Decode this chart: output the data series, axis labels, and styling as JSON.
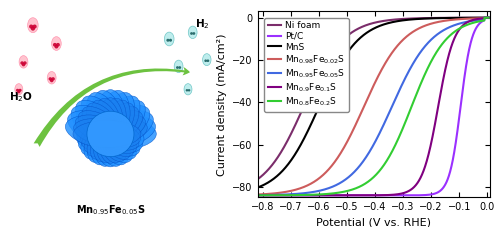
{
  "xlabel": "Potential (V vs. RHE)",
  "ylabel": "Current density (mA/cm²)",
  "xlim": [
    -0.82,
    0.01
  ],
  "ylim": [
    -85,
    3
  ],
  "yticks": [
    0,
    -20,
    -40,
    -60,
    -80
  ],
  "xticks": [
    -0.8,
    -0.7,
    -0.6,
    -0.5,
    -0.4,
    -0.3,
    -0.2,
    -0.1,
    0.0
  ],
  "line_colors": [
    "#7B2D6B",
    "#9B30FF",
    "#000000",
    "#CD5C5C",
    "#4169E1",
    "#800080",
    "#32CD32"
  ],
  "line_widths": [
    1.5,
    1.5,
    1.5,
    1.5,
    1.5,
    1.5,
    1.5
  ],
  "curve_params": [
    {
      "onset": -0.655,
      "steepness": 14,
      "max_current": -84
    },
    {
      "onset": -0.095,
      "steepness": 50,
      "max_current": -84
    },
    {
      "onset": -0.6,
      "steepness": 14,
      "max_current": -84
    },
    {
      "onset": -0.44,
      "steepness": 14,
      "max_current": -84
    },
    {
      "onset": -0.34,
      "steepness": 14,
      "max_current": -84
    },
    {
      "onset": -0.175,
      "steepness": 35,
      "max_current": -84
    },
    {
      "onset": -0.27,
      "steepness": 16,
      "max_current": -84
    }
  ],
  "background_color": "#ffffff",
  "legend_fontsize": 6.5,
  "axis_fontsize": 8,
  "tick_fontsize": 7
}
